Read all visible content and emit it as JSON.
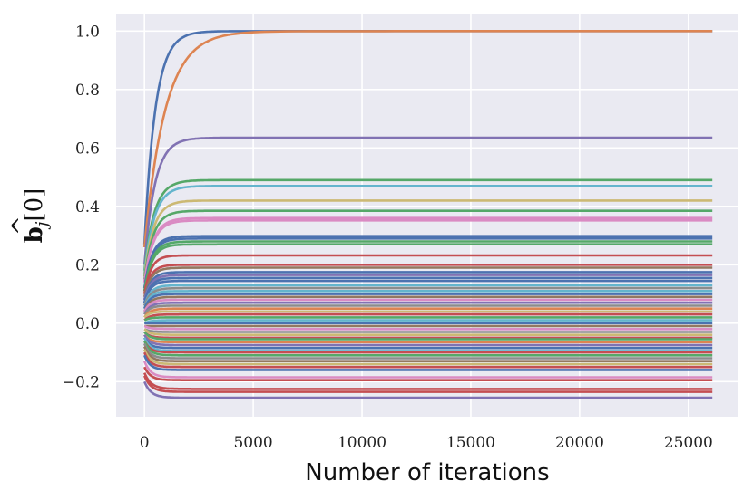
{
  "chart_data": {
    "type": "line",
    "xlabel": "Number of iterations",
    "ylabel": "b̂_j[0]",
    "ylabel_parts": {
      "symbol": "b",
      "hat": "^",
      "subscript": "j",
      "suffix": "[0]"
    },
    "xlim": [
      -1300,
      27300
    ],
    "ylim": [
      -0.32,
      1.06
    ],
    "xticks": [
      0,
      5000,
      10000,
      15000,
      20000,
      25000
    ],
    "xtick_labels": [
      "0",
      "5000",
      "10000",
      "15000",
      "20000",
      "25000"
    ],
    "yticks": [
      -0.2,
      0.0,
      0.2,
      0.4,
      0.6,
      0.8,
      1.0
    ],
    "ytick_labels": [
      "−0.2",
      "0.0",
      "0.2",
      "0.4",
      "0.6",
      "0.8",
      "1.0"
    ],
    "grid": true,
    "background": "#eaeaf2",
    "x_end": 26100,
    "palette": [
      "#4c72b0",
      "#dd8452",
      "#55a868",
      "#c44e52",
      "#8172b3",
      "#937860",
      "#da8bc3",
      "#8c8c8c",
      "#ccb974",
      "#64b5cd"
    ],
    "series": [
      {
        "start": 0.27,
        "final": 1.0,
        "tau": 500,
        "color": "#4c72b0"
      },
      {
        "start": 0.26,
        "final": 1.0,
        "tau": 950,
        "color": "#dd8452"
      },
      {
        "start": 0.2,
        "final": 0.635,
        "tau": 480,
        "color": "#8172b3"
      },
      {
        "start": 0.18,
        "final": 0.49,
        "tau": 450,
        "color": "#55a868"
      },
      {
        "start": 0.17,
        "final": 0.47,
        "tau": 450,
        "color": "#64b5cd"
      },
      {
        "start": 0.16,
        "final": 0.42,
        "tau": 420,
        "color": "#ccb974"
      },
      {
        "start": 0.15,
        "final": 0.385,
        "tau": 400,
        "color": "#55a868"
      },
      {
        "start": 0.14,
        "final": 0.36,
        "tau": 400,
        "color": "#da8bc3"
      },
      {
        "start": 0.14,
        "final": 0.352,
        "tau": 400,
        "color": "#da8bc3"
      },
      {
        "start": 0.12,
        "final": 0.298,
        "tau": 350,
        "color": "#4c72b0"
      },
      {
        "start": 0.12,
        "final": 0.29,
        "tau": 350,
        "color": "#4c72b0"
      },
      {
        "start": 0.11,
        "final": 0.28,
        "tau": 350,
        "color": "#55a868"
      },
      {
        "start": 0.11,
        "final": 0.27,
        "tau": 350,
        "color": "#55a868"
      },
      {
        "start": 0.1,
        "final": 0.232,
        "tau": 300,
        "color": "#c44e52"
      },
      {
        "start": 0.1,
        "final": 0.2,
        "tau": 300,
        "color": "#c44e52"
      },
      {
        "start": 0.09,
        "final": 0.19,
        "tau": 300,
        "color": "#937860"
      },
      {
        "start": 0.08,
        "final": 0.175,
        "tau": 300,
        "color": "#4c72b0"
      },
      {
        "start": 0.08,
        "final": 0.165,
        "tau": 300,
        "color": "#8172b3"
      },
      {
        "start": 0.07,
        "final": 0.155,
        "tau": 280,
        "color": "#4c72b0"
      },
      {
        "start": 0.07,
        "final": 0.145,
        "tau": 280,
        "color": "#4c72b0"
      },
      {
        "start": 0.06,
        "final": 0.13,
        "tau": 280,
        "color": "#64b5cd"
      },
      {
        "start": 0.06,
        "final": 0.12,
        "tau": 280,
        "color": "#8c8c8c"
      },
      {
        "start": 0.05,
        "final": 0.11,
        "tau": 260,
        "color": "#64b5cd"
      },
      {
        "start": 0.05,
        "final": 0.1,
        "tau": 260,
        "color": "#4c72b0"
      },
      {
        "start": 0.04,
        "final": 0.09,
        "tau": 260,
        "color": "#937860"
      },
      {
        "start": 0.04,
        "final": 0.08,
        "tau": 260,
        "color": "#da8bc3"
      },
      {
        "start": 0.03,
        "final": 0.07,
        "tau": 250,
        "color": "#8172b3"
      },
      {
        "start": 0.03,
        "final": 0.06,
        "tau": 250,
        "color": "#8c8c8c"
      },
      {
        "start": 0.02,
        "final": 0.05,
        "tau": 250,
        "color": "#dd8452"
      },
      {
        "start": 0.02,
        "final": 0.04,
        "tau": 250,
        "color": "#ccb974"
      },
      {
        "start": 0.01,
        "final": 0.03,
        "tau": 250,
        "color": "#c44e52"
      },
      {
        "start": 0.01,
        "final": 0.02,
        "tau": 250,
        "color": "#55a868"
      },
      {
        "start": 0.0,
        "final": 0.01,
        "tau": 250,
        "color": "#64b5cd"
      },
      {
        "start": 0.0,
        "final": 0.0,
        "tau": 250,
        "color": "#4c72b0"
      },
      {
        "start": -0.01,
        "final": -0.01,
        "tau": 250,
        "color": "#937860"
      },
      {
        "start": -0.01,
        "final": -0.02,
        "tau": 250,
        "color": "#da8bc3"
      },
      {
        "start": -0.02,
        "final": -0.03,
        "tau": 250,
        "color": "#8c8c8c"
      },
      {
        "start": -0.02,
        "final": -0.04,
        "tau": 250,
        "color": "#ccb974"
      },
      {
        "start": -0.03,
        "final": -0.05,
        "tau": 250,
        "color": "#c44e52"
      },
      {
        "start": -0.03,
        "final": -0.055,
        "tau": 250,
        "color": "#55a868"
      },
      {
        "start": -0.04,
        "final": -0.065,
        "tau": 250,
        "color": "#dd8452"
      },
      {
        "start": -0.04,
        "final": -0.075,
        "tau": 250,
        "color": "#8172b3"
      },
      {
        "start": -0.05,
        "final": -0.085,
        "tau": 250,
        "color": "#4c72b0"
      },
      {
        "start": -0.05,
        "final": -0.095,
        "tau": 250,
        "color": "#64b5cd"
      },
      {
        "start": -0.06,
        "final": -0.1,
        "tau": 250,
        "color": "#c44e52"
      },
      {
        "start": -0.06,
        "final": -0.11,
        "tau": 250,
        "color": "#55a868"
      },
      {
        "start": -0.07,
        "final": -0.12,
        "tau": 250,
        "color": "#8c8c8c"
      },
      {
        "start": -0.08,
        "final": -0.13,
        "tau": 260,
        "color": "#937860"
      },
      {
        "start": -0.09,
        "final": -0.14,
        "tau": 260,
        "color": "#ccb974"
      },
      {
        "start": -0.1,
        "final": -0.15,
        "tau": 260,
        "color": "#c44e52"
      },
      {
        "start": -0.11,
        "final": -0.16,
        "tau": 260,
        "color": "#4c72b0"
      },
      {
        "start": -0.13,
        "final": -0.185,
        "tau": 280,
        "color": "#da8bc3"
      },
      {
        "start": -0.15,
        "final": -0.195,
        "tau": 280,
        "color": "#c44e52"
      },
      {
        "start": -0.17,
        "final": -0.225,
        "tau": 300,
        "color": "#c44e52"
      },
      {
        "start": -0.18,
        "final": -0.235,
        "tau": 300,
        "color": "#c44e52"
      },
      {
        "start": -0.2,
        "final": -0.255,
        "tau": 300,
        "color": "#8172b3"
      }
    ]
  }
}
